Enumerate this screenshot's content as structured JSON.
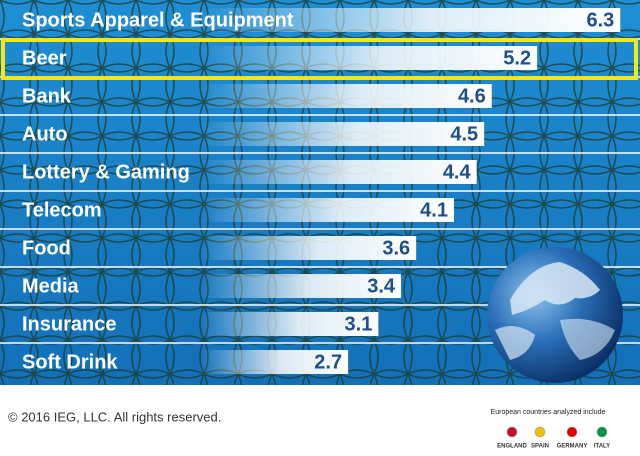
{
  "chart_data": {
    "type": "bar",
    "orientation": "horizontal",
    "categories": [
      "Sports Apparel & Equipment",
      "Beer",
      "Bank",
      "Auto",
      "Lottery & Gaming",
      "Telecom",
      "Food",
      "Media",
      "Insurance",
      "Soft Drink"
    ],
    "values": [
      6.3,
      5.2,
      4.6,
      4.5,
      4.4,
      4.1,
      3.6,
      3.4,
      3.1,
      2.7
    ],
    "color": "#ffffff",
    "highlight_index": 1,
    "highlight_color": "#f5e614"
  },
  "footer": {
    "copyright": "© 2016 IEG, LLC. All rights reserved.",
    "note": "European countries analyzed include",
    "countries": [
      "ENGLAND",
      "SPAIN",
      "GERMANY",
      "ITALY"
    ]
  }
}
